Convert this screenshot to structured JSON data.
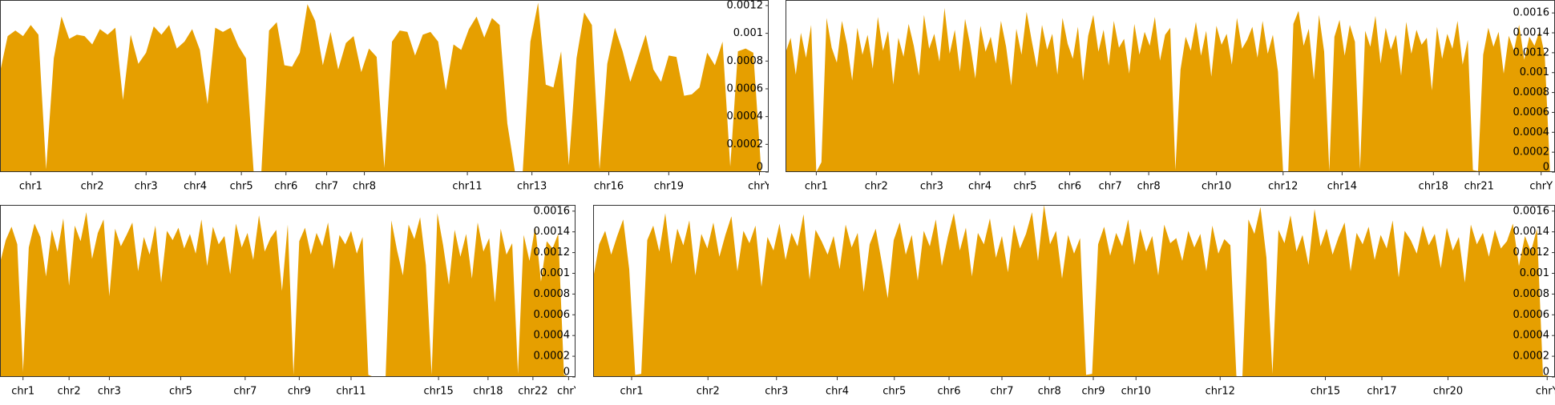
{
  "chart_data": [
    {
      "type": "area",
      "color": "#e69f00",
      "values": [
        0.00072,
        0.00098,
        0.00102,
        0.00098,
        0.00106,
        0.00099,
        2e-05,
        0.00082,
        0.00112,
        0.00096,
        0.00099,
        0.00098,
        0.00092,
        0.00103,
        0.00099,
        0.00104,
        0.00052,
        0.00099,
        0.00078,
        0.00086,
        0.00105,
        0.00099,
        0.00106,
        0.00089,
        0.00094,
        0.00103,
        0.00088,
        0.00049,
        0.00104,
        0.00101,
        0.00104,
        0.00091,
        0.00082,
        0,
        0,
        0.00102,
        0.00108,
        0.00077,
        0.00076,
        0.00086,
        0.00121,
        0.00109,
        0.00077,
        0.00101,
        0.00074,
        0.00093,
        0.00098,
        0.00072,
        0.00089,
        0.00083,
        3e-05,
        0.00094,
        0.00102,
        0.00101,
        0.00084,
        0.00099,
        0.00101,
        0.00094,
        0.00059,
        0.00092,
        0.00088,
        0.00103,
        0.00112,
        0.00097,
        0.00111,
        0.00106,
        0.00035,
        0,
        0,
        0.00094,
        0.00122,
        0.00063,
        0.00061,
        0.00087,
        5e-05,
        0.00082,
        0.00115,
        0.00106,
        2e-05,
        0.00078,
        0.00104,
        0.00087,
        0.00065,
        0.00082,
        0.00099,
        0.00074,
        0.00065,
        0.00084,
        0.00083,
        0.00055,
        0.00056,
        0.00061,
        0.00086,
        0.00077,
        0.00094,
        4e-05,
        0.00087,
        0.00089,
        0.00086,
        3e-05
      ],
      "xlim": [
        0,
        100
      ],
      "xticks": [
        {
          "value": 4,
          "label": "chr1"
        },
        {
          "value": 12,
          "label": "chr2"
        },
        {
          "value": 19,
          "label": "chr3"
        },
        {
          "value": 25.4,
          "label": "chr4"
        },
        {
          "value": 31.4,
          "label": "chr5"
        },
        {
          "value": 37.2,
          "label": "chr6"
        },
        {
          "value": 42.5,
          "label": "chr7"
        },
        {
          "value": 47.4,
          "label": "chr8"
        },
        {
          "value": 60.8,
          "label": "chr11"
        },
        {
          "value": 69.2,
          "label": "chr13"
        },
        {
          "value": 79.2,
          "label": "chr16"
        },
        {
          "value": 87,
          "label": "chr19"
        },
        {
          "value": 98.8,
          "label": "chrY"
        }
      ],
      "ylim": [
        0,
        0.00124
      ],
      "yticks": [
        0,
        0.0002,
        0.0004,
        0.0006,
        0.0008,
        0.001,
        0.0012
      ]
    },
    {
      "type": "area",
      "color": "#e69f00",
      "values": [
        0.0012,
        0.00135,
        0.00098,
        0.0014,
        0.00115,
        0.00148,
        0,
        0.0001,
        0.00155,
        0.00125,
        0.0011,
        0.00152,
        0.00128,
        0.00092,
        0.00145,
        0.00118,
        0.00138,
        0.00104,
        0.00156,
        0.00122,
        0.00142,
        0.00088,
        0.00135,
        0.00116,
        0.00149,
        0.00127,
        0.00097,
        0.00158,
        0.00124,
        0.00139,
        0.00111,
        0.00165,
        0.00119,
        0.00143,
        0.00101,
        0.00154,
        0.00128,
        0.00094,
        0.00147,
        0.00121,
        0.00136,
        0.00109,
        0.00152,
        0.00126,
        0.00087,
        0.00144,
        0.00118,
        0.00161,
        0.00132,
        0.00105,
        0.00148,
        0.00123,
        0.00139,
        0.00098,
        0.00155,
        0.00129,
        0.00114,
        0.00146,
        0.00092,
        0.00137,
        0.00158,
        0.00121,
        0.00143,
        0.00107,
        0.00152,
        0.00125,
        0.00134,
        0.00099,
        0.00149,
        0.00118,
        0.00141,
        0.00127,
        0.00156,
        0.00112,
        0.00138,
        0.00145,
        2e-05,
        0.00103,
        0.00136,
        0.00122,
        0.00151,
        0.00117,
        0.00142,
        0.00096,
        0.00147,
        0.00128,
        0.00139,
        0.00108,
        0.00155,
        0.00124,
        0.00133,
        0.00146,
        0.00115,
        0.00152,
        0.00119,
        0.00138,
        0.00101,
        0,
        0,
        0.00149,
        0.00162,
        0.00127,
        0.00144,
        0.00093,
        0.00158,
        0.00121,
        1e-05,
        0.00136,
        0.00153,
        0.00117,
        0.00148,
        0.00131,
        3e-05,
        0.00142,
        0.00126,
        0.00157,
        0.00109,
        0.00145,
        0.00123,
        0.00138,
        0.00097,
        0.00151,
        0.00119,
        0.00143,
        0.00128,
        0.00135,
        0.00082,
        0.00146,
        0.00114,
        0.00139,
        0.00124,
        0.00152,
        0.00108,
        0.00133,
        2e-05,
        1e-05,
        0.00118,
        0.00145,
        0.00126,
        0.00141,
        0.00099,
        0.00137,
        0.00122,
        0.00148,
        0.00113,
        0.00136,
        0.00127,
        0.00142,
        0.00118,
        3e-05
      ],
      "xlim": [
        0,
        150
      ],
      "xticks": [
        {
          "value": 6,
          "label": "chr1"
        },
        {
          "value": 17.7,
          "label": "chr2"
        },
        {
          "value": 28.5,
          "label": "chr3"
        },
        {
          "value": 37.9,
          "label": "chr4"
        },
        {
          "value": 46.7,
          "label": "chr5"
        },
        {
          "value": 55.4,
          "label": "chr6"
        },
        {
          "value": 63.3,
          "label": "chr7"
        },
        {
          "value": 70.8,
          "label": "chr8"
        },
        {
          "value": 84,
          "label": "chr10"
        },
        {
          "value": 97,
          "label": "chr12"
        },
        {
          "value": 108.5,
          "label": "chr14"
        },
        {
          "value": 126.3,
          "label": "chr18"
        },
        {
          "value": 135.2,
          "label": "chr21"
        },
        {
          "value": 147.3,
          "label": "chrY"
        }
      ],
      "ylim": [
        0,
        0.00173
      ],
      "yticks": [
        0,
        0.0002,
        0.0004,
        0.0006,
        0.0008,
        0.001,
        0.0012,
        0.0014,
        0.0016
      ]
    },
    {
      "type": "area",
      "color": "#e69f00",
      "values": [
        0.0011,
        0.00132,
        0.00145,
        0.00128,
        5e-05,
        0.00125,
        0.00148,
        0.00135,
        0.00097,
        0.00142,
        0.00121,
        0.00153,
        0.00088,
        0.00146,
        0.00131,
        0.00159,
        0.00114,
        0.00139,
        0.00152,
        0.00078,
        0.00143,
        0.00126,
        0.00137,
        0.00149,
        0.00102,
        0.00135,
        0.00118,
        0.00146,
        0.00091,
        0.00141,
        0.00132,
        0.00144,
        0.00124,
        0.00138,
        0.00119,
        0.00152,
        0.00107,
        0.00145,
        0.00128,
        0.00136,
        0.00099,
        0.00148,
        0.00125,
        0.00139,
        0.00113,
        0.00156,
        0.00121,
        0.00134,
        0.00142,
        0.00083,
        0.00147,
        2e-05,
        0.00131,
        0.00144,
        0.00118,
        0.00139,
        0.00126,
        0.00149,
        0.00104,
        0.00137,
        0.00128,
        0.00141,
        0.00119,
        0.00135,
        2e-05,
        0,
        0,
        0,
        0.00151,
        0.00122,
        0.00098,
        0.00147,
        0.00133,
        0.00154,
        0.00108,
        2e-05,
        0.00158,
        0.00127,
        0.00089,
        0.00142,
        0.00116,
        0.00138,
        0.00095,
        0.00149,
        0.00121,
        0.00134,
        0.00072,
        0.00143,
        0.00118,
        0.00129,
        3e-05,
        0.00137,
        0.00112,
        0.00145,
        0.00092,
        0.00131,
        0.00124,
        0.00138,
        2e-05,
        0
      ],
      "xlim": [
        0,
        100
      ],
      "xticks": [
        {
          "value": 4,
          "label": "chr1"
        },
        {
          "value": 12,
          "label": "chr2"
        },
        {
          "value": 19,
          "label": "chr3"
        },
        {
          "value": 31.4,
          "label": "chr5"
        },
        {
          "value": 42.6,
          "label": "chr7"
        },
        {
          "value": 52,
          "label": "chr9"
        },
        {
          "value": 61,
          "label": "chr11"
        },
        {
          "value": 76.2,
          "label": "chr15"
        },
        {
          "value": 84.8,
          "label": "chr18"
        },
        {
          "value": 92.6,
          "label": "chr22"
        },
        {
          "value": 98.8,
          "label": "chrY"
        }
      ],
      "ylim": [
        0,
        0.00166
      ],
      "yticks": [
        0,
        0.0002,
        0.0004,
        0.0006,
        0.0008,
        0.001,
        0.0012,
        0.0014,
        0.0016
      ]
    },
    {
      "type": "area",
      "color": "#e69f00",
      "values": [
        0.00095,
        0.00128,
        0.00141,
        0.00118,
        0.00136,
        0.00152,
        0.00104,
        2e-05,
        3e-05,
        0.00132,
        0.00146,
        0.00121,
        0.00158,
        0.00109,
        0.00143,
        0.00127,
        0.00151,
        0.00098,
        0.00138,
        0.00124,
        0.00149,
        0.00116,
        0.00137,
        0.00155,
        0.00102,
        0.00141,
        0.00129,
        0.00146,
        0.00087,
        0.00135,
        0.00122,
        0.00148,
        0.00113,
        0.00139,
        0.00126,
        0.00157,
        0.00094,
        0.00142,
        0.00131,
        0.00118,
        0.00136,
        0.00104,
        0.00147,
        0.00125,
        0.00139,
        0.00082,
        0.00128,
        0.00143,
        0.00111,
        0.00076,
        0.00132,
        0.00149,
        0.00118,
        0.00137,
        0.00093,
        0.00141,
        0.00126,
        0.00152,
        0.00107,
        0.00135,
        0.00158,
        0.00122,
        0.00144,
        0.00097,
        0.00139,
        0.00128,
        0.00153,
        0.00115,
        0.00136,
        0.00101,
        0.00147,
        0.00124,
        0.00138,
        0.00159,
        0.00112,
        0.00166,
        0.00128,
        0.00141,
        0.00095,
        0.00137,
        0.00119,
        0.00134,
        2e-05,
        3e-05,
        0.00128,
        0.00145,
        0.00117,
        0.00139,
        0.00126,
        0.00152,
        0.00108,
        0.00143,
        0.00121,
        0.00136,
        0.00098,
        0.00147,
        0.00129,
        0.00134,
        0.00112,
        0.00141,
        0.00125,
        0.00138,
        0.00102,
        0.00146,
        0.00119,
        0.00133,
        0.00127,
        1e-05,
        0,
        0.00152,
        0.00138,
        0.00164,
        0.00115,
        3e-05,
        0.00142,
        0.00129,
        0.00156,
        0.00121,
        0.00137,
        0.00108,
        0.00162,
        0.00126,
        0.00143,
        0.00118,
        0.00135,
        0.00149,
        0.00102,
        0.00139,
        0.00128,
        0.00145,
        0.00113,
        0.00137,
        0.00124,
        0.00151,
        0.00096,
        0.00141,
        0.00132,
        0.00119,
        0.00146,
        0.00127,
        0.00138,
        0.00105,
        0.00144,
        0.00122,
        0.00135,
        0.00091,
        0.00147,
        0.00128,
        0.00139,
        0.00116,
        0.00142,
        0.00124,
        0.00131,
        0.00148,
        0.00107,
        0.00136,
        0.00121,
        0.00143,
        2e-05,
        1e-05
      ],
      "xlim": [
        0,
        160
      ],
      "xticks": [
        {
          "value": 6.4,
          "label": "chr1"
        },
        {
          "value": 19.1,
          "label": "chr2"
        },
        {
          "value": 30.5,
          "label": "chr3"
        },
        {
          "value": 40.6,
          "label": "chr4"
        },
        {
          "value": 50.1,
          "label": "chr5"
        },
        {
          "value": 59.2,
          "label": "chr6"
        },
        {
          "value": 68,
          "label": "chr7"
        },
        {
          "value": 75.9,
          "label": "chr8"
        },
        {
          "value": 83.2,
          "label": "chr9"
        },
        {
          "value": 90.3,
          "label": "chr10"
        },
        {
          "value": 104.3,
          "label": "chr12"
        },
        {
          "value": 121.8,
          "label": "chr15"
        },
        {
          "value": 131.2,
          "label": "chr17"
        },
        {
          "value": 142.2,
          "label": "chr20"
        },
        {
          "value": 158.7,
          "label": "chrY"
        }
      ],
      "ylim": [
        0,
        0.00166
      ],
      "yticks": [
        0,
        0.0002,
        0.0004,
        0.0006,
        0.0008,
        0.001,
        0.0012,
        0.0014,
        0.0016
      ]
    }
  ]
}
